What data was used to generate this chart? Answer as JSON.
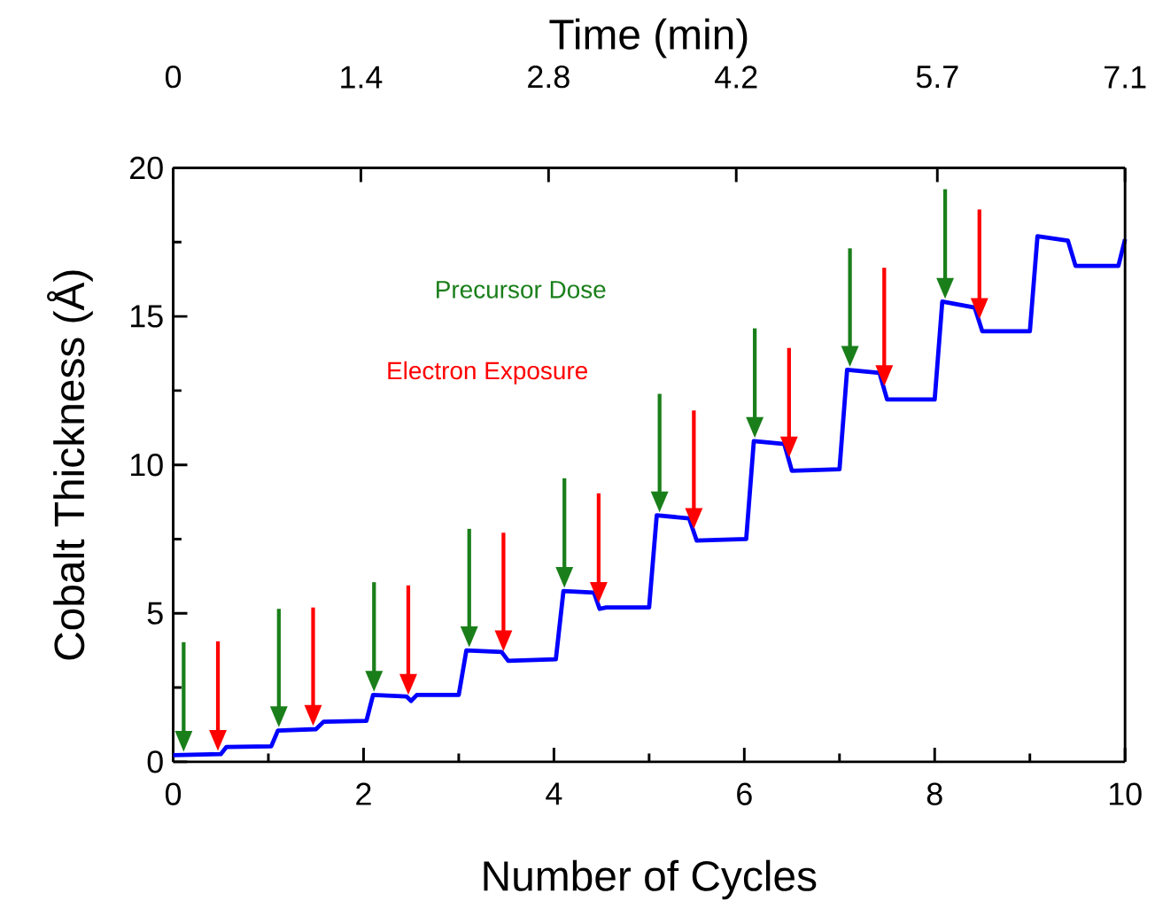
{
  "chart_data": {
    "type": "line",
    "xlabel": "Number of Cycles",
    "ylabel": "Cobalt Thickness (Å)",
    "x2label": "Time (min)",
    "xlim": [
      0,
      10
    ],
    "xticks": [
      0,
      2,
      4,
      6,
      8,
      10
    ],
    "ylim": [
      0,
      20
    ],
    "yticks": [
      0,
      5,
      10,
      15,
      20
    ],
    "x2lim": [
      0,
      7.1
    ],
    "x2ticks": [
      0,
      1.4,
      2.8,
      4.2,
      5.7,
      7.1
    ],
    "series": [
      {
        "color": "#0000ff",
        "x": [
          0,
          0.5,
          0.56,
          1.03,
          1.1,
          1.5,
          1.58,
          2.03,
          2.1,
          2.45,
          2.5,
          2.56,
          3.0,
          3.08,
          3.45,
          3.52,
          4.02,
          4.1,
          4.42,
          4.48,
          4.55,
          5.0,
          5.08,
          5.42,
          5.5,
          6.02,
          6.1,
          6.42,
          6.5,
          7.0,
          7.08,
          7.42,
          7.5,
          8.0,
          8.08,
          8.42,
          8.5,
          9.0,
          9.08,
          9.4,
          9.48,
          9.93,
          10
        ],
        "values": [
          0.22,
          0.26,
          0.5,
          0.52,
          1.05,
          1.1,
          1.35,
          1.38,
          2.25,
          2.2,
          2.05,
          2.25,
          2.25,
          3.75,
          3.7,
          3.4,
          3.45,
          5.75,
          5.7,
          5.15,
          5.2,
          5.2,
          8.3,
          8.2,
          7.45,
          7.5,
          10.8,
          10.7,
          9.8,
          9.85,
          13.2,
          13.1,
          12.2,
          12.2,
          15.5,
          15.3,
          14.5,
          14.5,
          17.7,
          17.55,
          16.7,
          16.7,
          17.6
        ]
      }
    ],
    "annotations": [
      "Precursor Dose",
      "Electron Exposure"
    ],
    "grid": false,
    "marker": "none",
    "line_style": "solid"
  }
}
